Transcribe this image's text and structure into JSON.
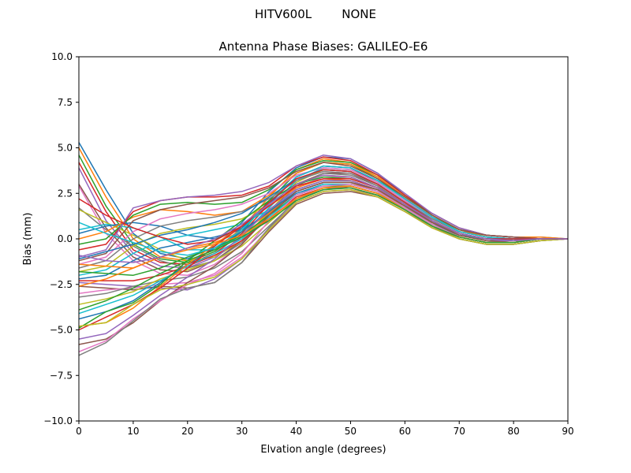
{
  "figure": {
    "suptitle": "HITV600L        NONE"
  },
  "chart_data": {
    "type": "line",
    "title": "Antenna Phase Biases: GALILEO-E6",
    "xlabel": "Elvation angle (degrees)",
    "ylabel": "Bias (mm)",
    "xlim": [
      0,
      90
    ],
    "ylim": [
      -10,
      10
    ],
    "xticks": [
      0,
      10,
      20,
      30,
      40,
      50,
      60,
      70,
      80,
      90
    ],
    "yticks": [
      -10.0,
      -7.5,
      -5.0,
      -2.5,
      0.0,
      2.5,
      5.0,
      7.5,
      10.0
    ],
    "ytick_labels": [
      "−10.0",
      "−7.5",
      "−5.0",
      "−2.5",
      "0.0",
      "2.5",
      "5.0",
      "7.5",
      "10.0"
    ],
    "grid": false,
    "legend": "none",
    "colors": [
      "#1f77b4",
      "#ff7f0e",
      "#2ca02c",
      "#d62728",
      "#9467bd",
      "#8c564b",
      "#e377c2",
      "#7f7f7f",
      "#bcbd22",
      "#17becf"
    ],
    "x": [
      0,
      5,
      10,
      15,
      20,
      25,
      30,
      35,
      40,
      45,
      50,
      55,
      60,
      65,
      70,
      75,
      80,
      85,
      90
    ],
    "series": [
      {
        "values": [
          5.3,
          2.7,
          0.3,
          -0.8,
          -1.1,
          -0.4,
          0.9,
          2.6,
          3.9,
          4.5,
          4.4,
          3.6,
          2.4,
          1.4,
          0.6,
          0.2,
          0.1,
          0.1,
          0.0
        ]
      },
      {
        "values": [
          5.0,
          2.3,
          0.0,
          -1.0,
          -1.2,
          -0.6,
          0.6,
          2.3,
          3.8,
          4.4,
          4.2,
          3.4,
          2.3,
          1.3,
          0.5,
          0.2,
          0.1,
          0.1,
          0.0
        ]
      },
      {
        "values": [
          4.6,
          1.8,
          -0.3,
          -1.1,
          -1.3,
          -0.7,
          0.4,
          2.1,
          3.6,
          4.2,
          4.1,
          3.3,
          2.2,
          1.2,
          0.5,
          0.1,
          0.0,
          0.0,
          0.0
        ]
      },
      {
        "values": [
          4.2,
          1.5,
          -0.6,
          -1.3,
          -1.4,
          -0.8,
          0.3,
          1.9,
          3.4,
          4.0,
          3.9,
          3.1,
          2.1,
          1.1,
          0.4,
          0.1,
          0.0,
          0.0,
          0.0
        ]
      },
      {
        "values": [
          3.9,
          1.0,
          -0.8,
          -1.5,
          -1.6,
          -1.0,
          0.1,
          1.7,
          3.2,
          3.8,
          3.7,
          3.0,
          2.0,
          1.0,
          0.3,
          0.0,
          -0.1,
          0.0,
          0.0
        ]
      },
      {
        "values": [
          3.0,
          0.6,
          -1.0,
          -1.7,
          -1.8,
          -1.2,
          -0.1,
          1.5,
          3.0,
          3.6,
          3.6,
          2.9,
          1.9,
          0.9,
          0.3,
          -0.1,
          -0.1,
          0.0,
          0.0
        ]
      },
      {
        "values": [
          2.9,
          0.3,
          -1.2,
          -1.9,
          -2.0,
          -1.4,
          -0.3,
          1.3,
          2.8,
          3.4,
          3.4,
          2.8,
          1.8,
          0.8,
          0.2,
          -0.1,
          -0.1,
          0.0,
          0.0
        ]
      },
      {
        "values": [
          1.7,
          0.5,
          -0.4,
          -1.2,
          -1.6,
          -1.2,
          -0.2,
          1.4,
          2.9,
          3.6,
          3.5,
          2.9,
          1.9,
          0.9,
          0.3,
          0.0,
          -0.1,
          0.0,
          0.0
        ]
      },
      {
        "values": [
          1.6,
          0.9,
          0.2,
          -0.6,
          -1.2,
          -1.0,
          -0.1,
          1.5,
          3.1,
          3.8,
          3.7,
          3.0,
          2.0,
          1.0,
          0.3,
          0.0,
          0.0,
          0.0,
          0.0
        ]
      },
      {
        "values": [
          0.5,
          0.8,
          0.6,
          0.1,
          -0.6,
          -0.6,
          0.2,
          1.7,
          3.2,
          3.9,
          3.8,
          3.1,
          2.1,
          1.1,
          0.4,
          0.1,
          0.0,
          0.0,
          0.0
        ]
      },
      {
        "values": [
          0.3,
          0.7,
          0.9,
          0.7,
          0.2,
          0.0,
          0.6,
          1.9,
          3.4,
          4.0,
          3.9,
          3.2,
          2.2,
          1.2,
          0.4,
          0.1,
          0.0,
          0.0,
          0.0
        ]
      },
      {
        "values": [
          0.0,
          0.4,
          1.2,
          1.6,
          1.5,
          1.3,
          1.5,
          2.4,
          3.6,
          4.2,
          4.1,
          3.4,
          2.3,
          1.3,
          0.5,
          0.1,
          0.0,
          0.0,
          0.0
        ]
      },
      {
        "values": [
          -0.3,
          0.0,
          1.3,
          1.9,
          2.0,
          1.9,
          2.0,
          2.7,
          3.8,
          4.3,
          4.2,
          3.5,
          2.4,
          1.3,
          0.5,
          0.2,
          0.1,
          0.0,
          0.0
        ]
      },
      {
        "values": [
          -0.6,
          -0.3,
          1.5,
          2.1,
          2.3,
          2.3,
          2.4,
          2.9,
          4.0,
          4.5,
          4.3,
          3.5,
          2.4,
          1.4,
          0.6,
          0.2,
          0.1,
          0.0,
          0.0
        ]
      },
      {
        "values": [
          -1.0,
          -0.6,
          1.7,
          2.1,
          2.3,
          2.4,
          2.6,
          3.1,
          4.0,
          4.6,
          4.4,
          3.6,
          2.5,
          1.4,
          0.6,
          0.2,
          0.1,
          0.0,
          0.0
        ]
      },
      {
        "values": [
          -1.2,
          -0.8,
          1.0,
          1.6,
          1.9,
          2.1,
          2.3,
          2.8,
          3.7,
          4.2,
          4.0,
          3.3,
          2.3,
          1.3,
          0.5,
          0.2,
          0.1,
          0.0,
          0.0
        ]
      },
      {
        "values": [
          -1.4,
          -1.0,
          0.4,
          1.1,
          1.4,
          1.6,
          1.9,
          2.5,
          3.5,
          3.9,
          3.8,
          3.1,
          2.1,
          1.2,
          0.4,
          0.1,
          0.0,
          0.0,
          0.0
        ]
      },
      {
        "values": [
          -1.6,
          -1.2,
          0.0,
          0.7,
          1.0,
          1.2,
          1.5,
          2.2,
          3.2,
          3.7,
          3.6,
          3.0,
          2.0,
          1.1,
          0.4,
          0.1,
          0.0,
          0.0,
          0.0
        ]
      },
      {
        "values": [
          -1.8,
          -1.5,
          -0.4,
          0.3,
          0.6,
          0.8,
          1.1,
          1.9,
          3.0,
          3.5,
          3.4,
          2.8,
          1.9,
          1.0,
          0.3,
          0.0,
          0.0,
          0.0,
          0.0
        ]
      },
      {
        "values": [
          -2.0,
          -1.7,
          -0.8,
          -0.1,
          0.2,
          0.5,
          0.8,
          1.6,
          2.7,
          3.2,
          3.2,
          2.7,
          1.8,
          0.9,
          0.2,
          0.0,
          -0.1,
          0.0,
          0.0
        ]
      },
      {
        "values": [
          -2.2,
          -2.0,
          -1.2,
          -0.5,
          -0.2,
          0.1,
          0.5,
          1.4,
          2.5,
          3.0,
          3.0,
          2.6,
          1.7,
          0.8,
          0.2,
          -0.1,
          -0.1,
          0.0,
          0.0
        ]
      },
      {
        "values": [
          -1.4,
          -1.5,
          -1.6,
          -1.0,
          -0.5,
          -0.2,
          0.4,
          1.4,
          2.6,
          3.1,
          3.1,
          2.6,
          1.8,
          0.9,
          0.2,
          -0.1,
          -0.1,
          0.0,
          0.0
        ]
      },
      {
        "values": [
          -1.8,
          -1.9,
          -2.0,
          -1.6,
          -1.0,
          -0.5,
          0.2,
          1.3,
          2.4,
          2.9,
          2.9,
          2.5,
          1.7,
          0.8,
          0.1,
          -0.2,
          -0.2,
          0.0,
          0.0
        ]
      },
      {
        "values": [
          -2.3,
          -2.3,
          -2.3,
          -2.0,
          -1.5,
          -0.9,
          -0.1,
          1.1,
          2.3,
          2.8,
          2.8,
          2.4,
          1.6,
          0.7,
          0.1,
          -0.2,
          -0.2,
          0.0,
          0.0
        ]
      },
      {
        "values": [
          -2.4,
          -2.5,
          -2.6,
          -2.7,
          -2.8,
          -2.2,
          -1.1,
          0.6,
          2.0,
          2.6,
          2.7,
          2.3,
          1.5,
          0.7,
          0.0,
          -0.3,
          -0.3,
          -0.1,
          0.0
        ]
      },
      {
        "values": [
          -2.6,
          -2.7,
          -2.8,
          -2.6,
          -2.7,
          -2.4,
          -1.3,
          0.4,
          1.9,
          2.5,
          2.6,
          2.3,
          1.5,
          0.6,
          0.0,
          -0.3,
          -0.3,
          -0.1,
          0.0
        ]
      },
      {
        "values": [
          -3.0,
          -2.8,
          -2.7,
          -2.5,
          -2.4,
          -2.0,
          -1.0,
          0.5,
          2.0,
          2.6,
          2.7,
          2.4,
          1.6,
          0.7,
          0.0,
          -0.3,
          -0.3,
          -0.1,
          0.0
        ]
      },
      {
        "values": [
          -3.2,
          -3.0,
          -2.6,
          -2.3,
          -2.1,
          -1.6,
          -0.7,
          0.7,
          2.1,
          2.7,
          2.8,
          2.4,
          1.6,
          0.7,
          0.0,
          -0.3,
          -0.3,
          -0.1,
          0.0
        ]
      },
      {
        "values": [
          -3.6,
          -3.3,
          -2.9,
          -2.2,
          -1.7,
          -1.2,
          -0.4,
          0.9,
          2.2,
          2.8,
          2.9,
          2.5,
          1.7,
          0.8,
          0.1,
          -0.2,
          -0.2,
          0.0,
          0.0
        ]
      },
      {
        "values": [
          -4.1,
          -3.6,
          -3.1,
          -2.3,
          -1.5,
          -0.8,
          0.0,
          1.2,
          2.4,
          3.0,
          3.0,
          2.6,
          1.7,
          0.8,
          0.1,
          -0.2,
          -0.2,
          0.0,
          0.0
        ]
      },
      {
        "values": [
          -4.4,
          -4.0,
          -3.4,
          -2.4,
          -1.4,
          -0.5,
          0.4,
          1.5,
          2.6,
          3.1,
          3.1,
          2.7,
          1.8,
          0.9,
          0.2,
          -0.1,
          -0.2,
          0.0,
          0.0
        ]
      },
      {
        "values": [
          -4.8,
          -4.6,
          -3.8,
          -2.6,
          -1.4,
          -0.3,
          0.7,
          1.8,
          2.8,
          3.3,
          3.2,
          2.7,
          1.8,
          0.9,
          0.2,
          -0.1,
          -0.1,
          0.0,
          0.0
        ]
      },
      {
        "values": [
          -4.9,
          -4.0,
          -3.5,
          -2.5,
          -1.2,
          -0.1,
          1.0,
          2.1,
          3.0,
          3.4,
          3.3,
          2.8,
          1.9,
          1.0,
          0.3,
          0.0,
          -0.1,
          0.0,
          0.0
        ]
      },
      {
        "values": [
          -5.0,
          -4.3,
          -3.6,
          -2.7,
          -1.6,
          -0.4,
          0.7,
          1.8,
          2.9,
          3.3,
          3.3,
          2.8,
          1.9,
          1.0,
          0.3,
          0.0,
          -0.1,
          0.0,
          0.0
        ]
      },
      {
        "values": [
          -5.5,
          -5.2,
          -4.2,
          -3.1,
          -2.1,
          -1.1,
          0.2,
          1.6,
          2.7,
          3.2,
          3.2,
          2.7,
          1.8,
          0.9,
          0.2,
          -0.1,
          -0.1,
          0.0,
          0.0
        ]
      },
      {
        "values": [
          -5.8,
          -5.5,
          -4.6,
          -3.4,
          -2.4,
          -1.5,
          -0.3,
          1.3,
          2.6,
          3.1,
          3.1,
          2.7,
          1.8,
          0.9,
          0.2,
          -0.1,
          -0.2,
          0.0,
          0.0
        ]
      },
      {
        "values": [
          -6.2,
          -5.6,
          -4.4,
          -3.4,
          -2.5,
          -1.9,
          -0.8,
          1.0,
          2.4,
          2.9,
          3.0,
          2.6,
          1.7,
          0.8,
          0.1,
          -0.2,
          -0.2,
          0.0,
          0.0
        ]
      },
      {
        "values": [
          -6.4,
          -5.7,
          -4.5,
          -3.3,
          -2.7,
          -2.4,
          -1.3,
          0.6,
          2.2,
          2.7,
          2.9,
          2.5,
          1.6,
          0.7,
          0.0,
          -0.3,
          -0.3,
          -0.1,
          0.0
        ]
      },
      {
        "values": [
          -4.8,
          -4.6,
          -3.6,
          -2.8,
          -2.5,
          -2.1,
          -1.1,
          0.5,
          2.0,
          2.6,
          2.7,
          2.3,
          1.5,
          0.6,
          0.0,
          -0.3,
          -0.3,
          -0.1,
          0.0
        ]
      },
      {
        "values": [
          0.9,
          0.3,
          -0.2,
          -0.7,
          -0.9,
          -0.5,
          0.5,
          2.0,
          3.4,
          4.0,
          3.9,
          3.2,
          2.2,
          1.2,
          0.4,
          0.1,
          0.0,
          0.0,
          0.0
        ]
      },
      {
        "values": [
          -1.1,
          -0.7,
          -0.3,
          0.2,
          0.5,
          0.9,
          1.4,
          2.3,
          3.3,
          3.8,
          3.7,
          3.0,
          2.0,
          1.0,
          0.3,
          0.0,
          0.0,
          0.0,
          0.0
        ]
      },
      {
        "values": [
          -2.6,
          -2.2,
          -1.6,
          -1.0,
          -0.6,
          -0.3,
          0.2,
          1.1,
          2.2,
          2.8,
          2.9,
          2.5,
          1.6,
          0.7,
          0.1,
          -0.2,
          -0.2,
          0.0,
          0.0
        ]
      },
      {
        "values": [
          -3.9,
          -3.4,
          -2.7,
          -1.9,
          -1.2,
          -0.6,
          0.1,
          1.0,
          2.1,
          2.7,
          2.8,
          2.4,
          1.6,
          0.7,
          0.1,
          -0.2,
          -0.2,
          0.0,
          0.0
        ]
      },
      {
        "values": [
          2.2,
          1.3,
          0.6,
          0.1,
          -0.3,
          -0.1,
          0.7,
          2.0,
          3.3,
          3.8,
          3.7,
          3.0,
          2.0,
          1.0,
          0.3,
          0.0,
          0.0,
          0.0,
          0.0
        ]
      },
      {
        "values": [
          -0.9,
          -1.2,
          -1.3,
          -1.0,
          -0.5,
          0.0,
          0.8,
          1.9,
          3.0,
          3.5,
          3.4,
          2.8,
          1.9,
          1.0,
          0.3,
          0.0,
          -0.1,
          0.0,
          0.0
        ]
      }
    ]
  }
}
